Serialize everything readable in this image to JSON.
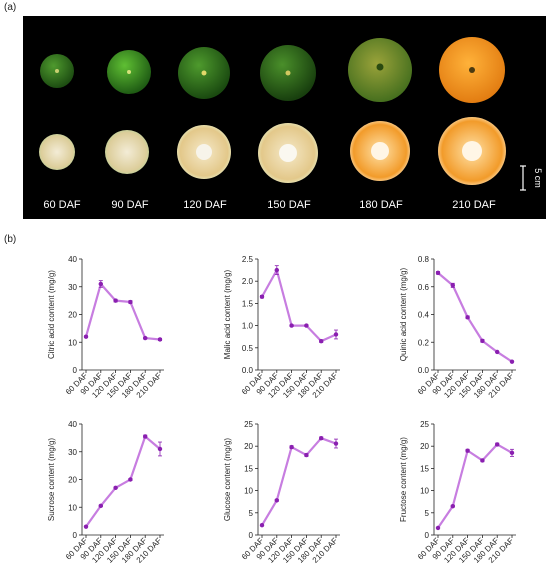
{
  "panel_a_label": "(a)",
  "panel_b_label": "(b)",
  "photo": {
    "stage_labels": [
      "60 DAF",
      "90 DAF",
      "120 DAF",
      "150 DAF",
      "180 DAF",
      "210 DAF"
    ],
    "scale_label": "5 cm",
    "colors": {
      "background": "#000000",
      "green_fruit": "#2e7d1f",
      "mid_fruit": "#5f8a2a",
      "orange_fruit": "#f39a1b",
      "pale_flesh": "#e8d8b0",
      "orange_flesh": "#f0a030"
    }
  },
  "chart_data": [
    {
      "type": "line",
      "ylabel": "Citric acid content (mg/g)",
      "categories": [
        "60 DAF",
        "90 DAF",
        "120 DAF",
        "150 DAF",
        "180 DAF",
        "210 DAF"
      ],
      "values": [
        12,
        31,
        25,
        24.5,
        11.5,
        11
      ],
      "errors": [
        0.3,
        1.2,
        0.5,
        0.5,
        0.3,
        0.4
      ],
      "ylim": [
        0,
        40
      ],
      "yticks": [
        "0",
        "10",
        "20",
        "30",
        "40"
      ],
      "ytick_values": [
        0,
        10,
        20,
        30,
        40
      ]
    },
    {
      "type": "line",
      "ylabel": "Malic acid content (mg/g)",
      "categories": [
        "60 DAF",
        "90 DAF",
        "120 DAF",
        "150 DAF",
        "180 DAF",
        "210 DAF"
      ],
      "values": [
        1.65,
        2.25,
        1.0,
        1.0,
        0.65,
        0.8
      ],
      "errors": [
        0.03,
        0.1,
        0.02,
        0.02,
        0.03,
        0.1
      ],
      "ylim": [
        0,
        2.5
      ],
      "yticks": [
        "0.0",
        "0.5",
        "1.0",
        "1.5",
        "2.0",
        "2.5"
      ],
      "ytick_values": [
        0,
        0.5,
        1.0,
        1.5,
        2.0,
        2.5
      ]
    },
    {
      "type": "line",
      "ylabel": "Quinic acid content (mg/g)",
      "categories": [
        "60 DAF",
        "90 DAF",
        "120 DAF",
        "150 DAF",
        "180 DAF",
        "210 DAF"
      ],
      "values": [
        0.7,
        0.61,
        0.38,
        0.21,
        0.13,
        0.06
      ],
      "errors": [
        0.01,
        0.015,
        0.01,
        0.01,
        0.005,
        0.005
      ],
      "ylim": [
        0,
        0.8
      ],
      "yticks": [
        "0.0",
        "0.2",
        "0.4",
        "0.6",
        "0.8"
      ],
      "ytick_values": [
        0,
        0.2,
        0.4,
        0.6,
        0.8
      ]
    },
    {
      "type": "line",
      "ylabel": "Sucrose content (mg/g)",
      "categories": [
        "60 DAF",
        "90 DAF",
        "120 DAF",
        "150 DAF",
        "180 DAF",
        "210 DAF"
      ],
      "values": [
        3,
        10.5,
        17,
        20,
        35.5,
        31
      ],
      "errors": [
        0.2,
        0.3,
        0.3,
        0.4,
        0.5,
        2.5
      ],
      "ylim": [
        0,
        40
      ],
      "yticks": [
        "0",
        "10",
        "20",
        "30",
        "40"
      ],
      "ytick_values": [
        0,
        10,
        20,
        30,
        40
      ]
    },
    {
      "type": "line",
      "ylabel": "Glucose content (mg/g)",
      "categories": [
        "60 DAF",
        "90 DAF",
        "120 DAF",
        "150 DAF",
        "180 DAF",
        "210 DAF"
      ],
      "values": [
        2.2,
        7.8,
        19.8,
        18,
        21.8,
        20.6
      ],
      "errors": [
        0.15,
        0.2,
        0.3,
        0.3,
        0.3,
        1.0
      ],
      "ylim": [
        0,
        25
      ],
      "yticks": [
        "0",
        "5",
        "10",
        "15",
        "20",
        "25"
      ],
      "ytick_values": [
        0,
        5,
        10,
        15,
        20,
        25
      ]
    },
    {
      "type": "line",
      "ylabel": "Fructose content (mg/g)",
      "categories": [
        "60 DAF",
        "90 DAF",
        "120 DAF",
        "150 DAF",
        "180 DAF",
        "210 DAF"
      ],
      "values": [
        1.6,
        6.5,
        19,
        16.8,
        20.4,
        18.5
      ],
      "errors": [
        0.1,
        0.2,
        0.3,
        0.3,
        0.3,
        0.8
      ],
      "ylim": [
        0,
        25
      ],
      "yticks": [
        "0",
        "5",
        "10",
        "15",
        "20",
        "25"
      ],
      "ytick_values": [
        0,
        5,
        10,
        15,
        20,
        25
      ]
    }
  ],
  "line_color": "#c77de0",
  "marker_color": "#8a1fb0"
}
